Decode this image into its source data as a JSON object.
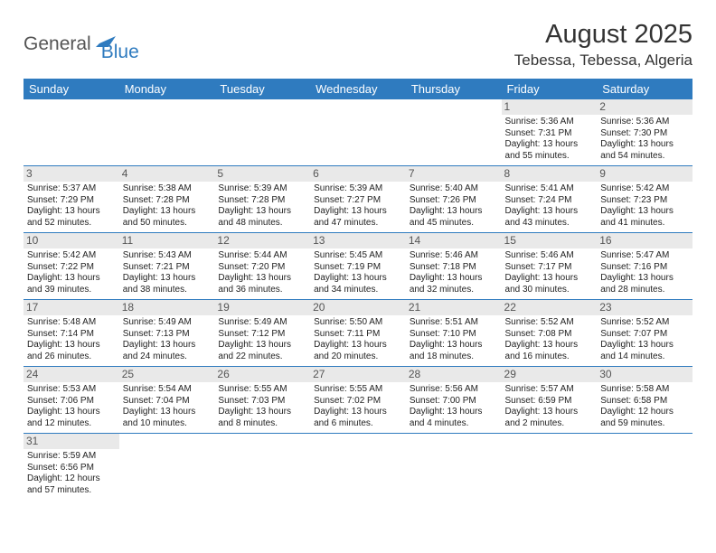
{
  "logo": {
    "general": "General",
    "blue": "Blue"
  },
  "title": "August 2025",
  "location": "Tebessa, Tebessa, Algeria",
  "colors": {
    "header_bg": "#2f7bbf",
    "header_text": "#ffffff",
    "daynum_bg": "#e9e9e9",
    "border": "#2f7bbf"
  },
  "dayHeaders": [
    "Sunday",
    "Monday",
    "Tuesday",
    "Wednesday",
    "Thursday",
    "Friday",
    "Saturday"
  ],
  "weeks": [
    [
      null,
      null,
      null,
      null,
      null,
      {
        "n": "1",
        "sr": "Sunrise: 5:36 AM",
        "ss": "Sunset: 7:31 PM",
        "d1": "Daylight: 13 hours",
        "d2": "and 55 minutes."
      },
      {
        "n": "2",
        "sr": "Sunrise: 5:36 AM",
        "ss": "Sunset: 7:30 PM",
        "d1": "Daylight: 13 hours",
        "d2": "and 54 minutes."
      }
    ],
    [
      {
        "n": "3",
        "sr": "Sunrise: 5:37 AM",
        "ss": "Sunset: 7:29 PM",
        "d1": "Daylight: 13 hours",
        "d2": "and 52 minutes."
      },
      {
        "n": "4",
        "sr": "Sunrise: 5:38 AM",
        "ss": "Sunset: 7:28 PM",
        "d1": "Daylight: 13 hours",
        "d2": "and 50 minutes."
      },
      {
        "n": "5",
        "sr": "Sunrise: 5:39 AM",
        "ss": "Sunset: 7:28 PM",
        "d1": "Daylight: 13 hours",
        "d2": "and 48 minutes."
      },
      {
        "n": "6",
        "sr": "Sunrise: 5:39 AM",
        "ss": "Sunset: 7:27 PM",
        "d1": "Daylight: 13 hours",
        "d2": "and 47 minutes."
      },
      {
        "n": "7",
        "sr": "Sunrise: 5:40 AM",
        "ss": "Sunset: 7:26 PM",
        "d1": "Daylight: 13 hours",
        "d2": "and 45 minutes."
      },
      {
        "n": "8",
        "sr": "Sunrise: 5:41 AM",
        "ss": "Sunset: 7:24 PM",
        "d1": "Daylight: 13 hours",
        "d2": "and 43 minutes."
      },
      {
        "n": "9",
        "sr": "Sunrise: 5:42 AM",
        "ss": "Sunset: 7:23 PM",
        "d1": "Daylight: 13 hours",
        "d2": "and 41 minutes."
      }
    ],
    [
      {
        "n": "10",
        "sr": "Sunrise: 5:42 AM",
        "ss": "Sunset: 7:22 PM",
        "d1": "Daylight: 13 hours",
        "d2": "and 39 minutes."
      },
      {
        "n": "11",
        "sr": "Sunrise: 5:43 AM",
        "ss": "Sunset: 7:21 PM",
        "d1": "Daylight: 13 hours",
        "d2": "and 38 minutes."
      },
      {
        "n": "12",
        "sr": "Sunrise: 5:44 AM",
        "ss": "Sunset: 7:20 PM",
        "d1": "Daylight: 13 hours",
        "d2": "and 36 minutes."
      },
      {
        "n": "13",
        "sr": "Sunrise: 5:45 AM",
        "ss": "Sunset: 7:19 PM",
        "d1": "Daylight: 13 hours",
        "d2": "and 34 minutes."
      },
      {
        "n": "14",
        "sr": "Sunrise: 5:46 AM",
        "ss": "Sunset: 7:18 PM",
        "d1": "Daylight: 13 hours",
        "d2": "and 32 minutes."
      },
      {
        "n": "15",
        "sr": "Sunrise: 5:46 AM",
        "ss": "Sunset: 7:17 PM",
        "d1": "Daylight: 13 hours",
        "d2": "and 30 minutes."
      },
      {
        "n": "16",
        "sr": "Sunrise: 5:47 AM",
        "ss": "Sunset: 7:16 PM",
        "d1": "Daylight: 13 hours",
        "d2": "and 28 minutes."
      }
    ],
    [
      {
        "n": "17",
        "sr": "Sunrise: 5:48 AM",
        "ss": "Sunset: 7:14 PM",
        "d1": "Daylight: 13 hours",
        "d2": "and 26 minutes."
      },
      {
        "n": "18",
        "sr": "Sunrise: 5:49 AM",
        "ss": "Sunset: 7:13 PM",
        "d1": "Daylight: 13 hours",
        "d2": "and 24 minutes."
      },
      {
        "n": "19",
        "sr": "Sunrise: 5:49 AM",
        "ss": "Sunset: 7:12 PM",
        "d1": "Daylight: 13 hours",
        "d2": "and 22 minutes."
      },
      {
        "n": "20",
        "sr": "Sunrise: 5:50 AM",
        "ss": "Sunset: 7:11 PM",
        "d1": "Daylight: 13 hours",
        "d2": "and 20 minutes."
      },
      {
        "n": "21",
        "sr": "Sunrise: 5:51 AM",
        "ss": "Sunset: 7:10 PM",
        "d1": "Daylight: 13 hours",
        "d2": "and 18 minutes."
      },
      {
        "n": "22",
        "sr": "Sunrise: 5:52 AM",
        "ss": "Sunset: 7:08 PM",
        "d1": "Daylight: 13 hours",
        "d2": "and 16 minutes."
      },
      {
        "n": "23",
        "sr": "Sunrise: 5:52 AM",
        "ss": "Sunset: 7:07 PM",
        "d1": "Daylight: 13 hours",
        "d2": "and 14 minutes."
      }
    ],
    [
      {
        "n": "24",
        "sr": "Sunrise: 5:53 AM",
        "ss": "Sunset: 7:06 PM",
        "d1": "Daylight: 13 hours",
        "d2": "and 12 minutes."
      },
      {
        "n": "25",
        "sr": "Sunrise: 5:54 AM",
        "ss": "Sunset: 7:04 PM",
        "d1": "Daylight: 13 hours",
        "d2": "and 10 minutes."
      },
      {
        "n": "26",
        "sr": "Sunrise: 5:55 AM",
        "ss": "Sunset: 7:03 PM",
        "d1": "Daylight: 13 hours",
        "d2": "and 8 minutes."
      },
      {
        "n": "27",
        "sr": "Sunrise: 5:55 AM",
        "ss": "Sunset: 7:02 PM",
        "d1": "Daylight: 13 hours",
        "d2": "and 6 minutes."
      },
      {
        "n": "28",
        "sr": "Sunrise: 5:56 AM",
        "ss": "Sunset: 7:00 PM",
        "d1": "Daylight: 13 hours",
        "d2": "and 4 minutes."
      },
      {
        "n": "29",
        "sr": "Sunrise: 5:57 AM",
        "ss": "Sunset: 6:59 PM",
        "d1": "Daylight: 13 hours",
        "d2": "and 2 minutes."
      },
      {
        "n": "30",
        "sr": "Sunrise: 5:58 AM",
        "ss": "Sunset: 6:58 PM",
        "d1": "Daylight: 12 hours",
        "d2": "and 59 minutes."
      }
    ],
    [
      {
        "n": "31",
        "sr": "Sunrise: 5:59 AM",
        "ss": "Sunset: 6:56 PM",
        "d1": "Daylight: 12 hours",
        "d2": "and 57 minutes."
      },
      null,
      null,
      null,
      null,
      null,
      null
    ]
  ]
}
